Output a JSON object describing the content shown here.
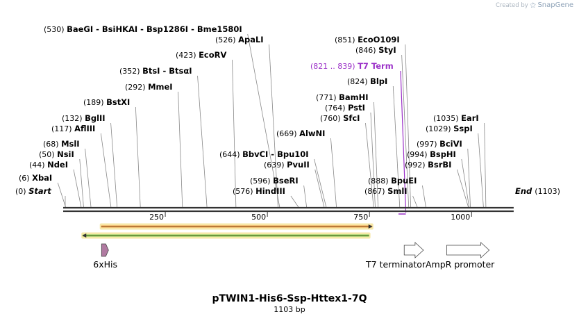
{
  "brand": {
    "created_by": "Created by",
    "name": "SnapGene"
  },
  "plasmid": {
    "name": "pTWIN1-His6-Ssp-Httex1-7Q",
    "length_label": "1103 bp",
    "length": 1103,
    "start_label": "Start",
    "end_label": "End",
    "start_pos": "(0)",
    "end_pos": "(1103)"
  },
  "ruler": {
    "ticks": [
      250,
      500,
      750,
      1000
    ],
    "labels": [
      "250",
      "500",
      "750",
      "1000"
    ]
  },
  "sites": [
    {
      "pos": 6,
      "pos_label": "(6)",
      "name": "XbaI"
    },
    {
      "pos": 44,
      "pos_label": "(44)",
      "name": "NdeI"
    },
    {
      "pos": 50,
      "pos_label": "(50)",
      "name": "NsiI"
    },
    {
      "pos": 68,
      "pos_label": "(68)",
      "name": "MslI"
    },
    {
      "pos": 117,
      "pos_label": "(117)",
      "name": "AflIII"
    },
    {
      "pos": 132,
      "pos_label": "(132)",
      "name": "BglII"
    },
    {
      "pos": 189,
      "pos_label": "(189)",
      "name": "BstXI"
    },
    {
      "pos": 292,
      "pos_label": "(292)",
      "name": "MmeI"
    },
    {
      "pos": 352,
      "pos_label": "(352)",
      "name": "BtsI - BtsαI"
    },
    {
      "pos": 423,
      "pos_label": "(423)",
      "name": "EcoRV"
    },
    {
      "pos": 526,
      "pos_label": "(526)",
      "name": "ApaLI"
    },
    {
      "pos": 530,
      "pos_label": "(530)",
      "name": "BaeGI - BsiHKAI - Bsp1286I - Bme1580I"
    },
    {
      "pos": 576,
      "pos_label": "(576)",
      "name": "HindIII"
    },
    {
      "pos": 596,
      "pos_label": "(596)",
      "name": "BseRI"
    },
    {
      "pos": 639,
      "pos_label": "(639)",
      "name": "PvuII"
    },
    {
      "pos": 644,
      "pos_label": "(644)",
      "name": "BbvCI - Bpu10I"
    },
    {
      "pos": 669,
      "pos_label": "(669)",
      "name": "AlwNI"
    },
    {
      "pos": 760,
      "pos_label": "(760)",
      "name": "SfcI"
    },
    {
      "pos": 764,
      "pos_label": "(764)",
      "name": "PstI"
    },
    {
      "pos": 771,
      "pos_label": "(771)",
      "name": "BamHI"
    },
    {
      "pos": 824,
      "pos_label": "(824)",
      "name": "BlpI"
    },
    {
      "pos": 846,
      "pos_label": "(846)",
      "name": "StyI"
    },
    {
      "pos": 851,
      "pos_label": "(851)",
      "name": "EcoO109I"
    },
    {
      "pos": 867,
      "pos_label": "(867)",
      "name": "SmlI"
    },
    {
      "pos": 888,
      "pos_label": "(888)",
      "name": "BpuEI"
    },
    {
      "pos": 992,
      "pos_label": "(992)",
      "name": "BsrBI"
    },
    {
      "pos": 994,
      "pos_label": "(994)",
      "name": "BspHI"
    },
    {
      "pos": 997,
      "pos_label": "(997)",
      "name": "BciVI"
    },
    {
      "pos": 1029,
      "pos_label": "(1029)",
      "name": "SspI"
    },
    {
      "pos": 1035,
      "pos_label": "(1035)",
      "name": "EarI"
    }
  ],
  "terminator_site": {
    "pos_label": "(821 .. 839)",
    "name": "T7 Term",
    "color": "#9b30c8",
    "start": 821,
    "end": 839
  },
  "features": [
    {
      "name": "6xHis",
      "start": 94,
      "end": 111,
      "direction": "forward",
      "color": "#b07aa1"
    },
    {
      "name": "T7 terminator",
      "start": 835,
      "end": 882,
      "direction": "forward",
      "color": "#ffffff"
    },
    {
      "name": "AmpR promoter",
      "start": 939,
      "end": 1043,
      "direction": "forward",
      "color": "#ffffff"
    }
  ],
  "orfs": [
    {
      "start": 93,
      "end": 756,
      "direction": "forward",
      "color": "#f0a050"
    },
    {
      "start": 48,
      "end": 749,
      "direction": "reverse",
      "color": "#7acc5a"
    }
  ],
  "colors": {
    "backbone": "#333333",
    "highlight": "#f7e8a8"
  }
}
